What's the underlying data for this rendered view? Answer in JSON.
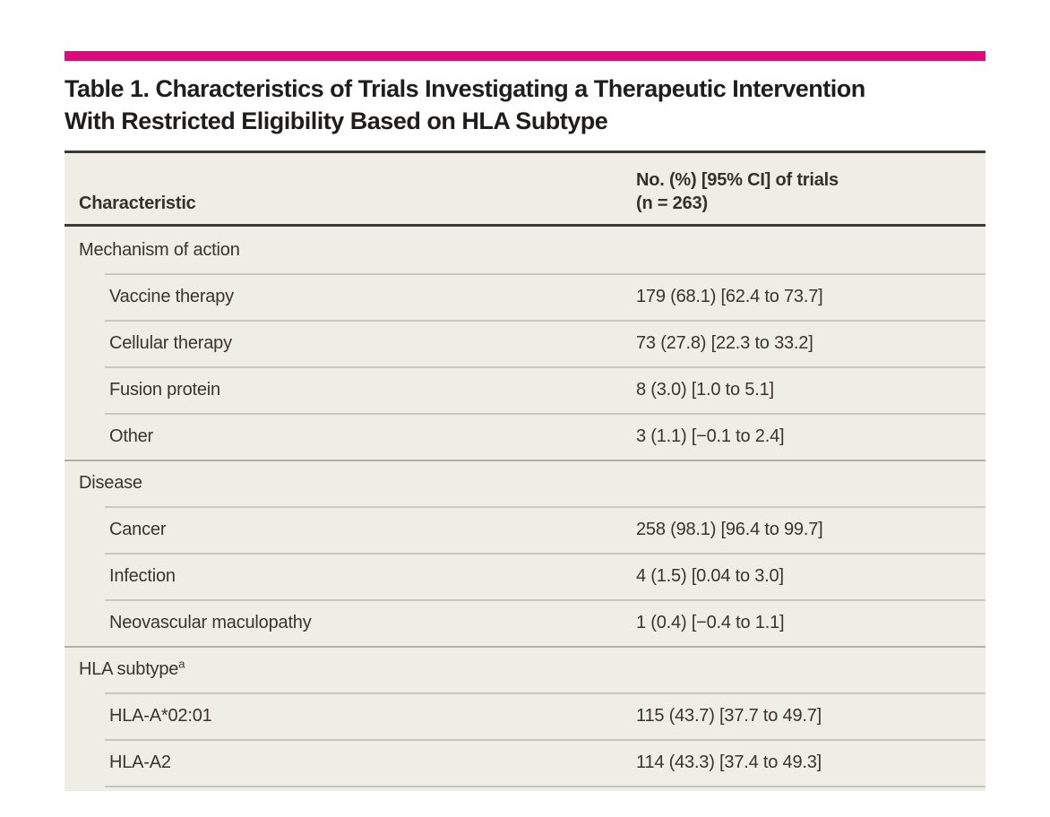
{
  "colors": {
    "accent": "#e2077c",
    "table_background": "#efeee6",
    "rule_dark": "#3b3a37"
  },
  "table": {
    "title": "Table 1. Characteristics of Trials Investigating a Therapeutic Intervention\nWith Restricted Eligibility Based on HLA Subtype",
    "columns": {
      "characteristic": "Characteristic",
      "values": "No. (%) [95% CI] of trials\n(n = 263)"
    },
    "rows": [
      {
        "label": "Mechanism of action",
        "value": "",
        "level": "section"
      },
      {
        "label": "Vaccine therapy",
        "value": "179 (68.1) [62.4 to 73.7]",
        "level": "sub"
      },
      {
        "label": "Cellular therapy",
        "value": "73 (27.8) [22.3 to 33.2]",
        "level": "sub"
      },
      {
        "label": "Fusion protein",
        "value": "8 (3.0) [1.0 to 5.1]",
        "level": "sub"
      },
      {
        "label": "Other",
        "value": "3 (1.1) [−0.1 to 2.4]",
        "level": "sub"
      },
      {
        "label": "Disease",
        "value": "",
        "level": "section"
      },
      {
        "label": "Cancer",
        "value": "258 (98.1) [96.4 to 99.7]",
        "level": "sub"
      },
      {
        "label": "Infection",
        "value": "4 (1.5) [0.04 to 3.0]",
        "level": "sub"
      },
      {
        "label": "Neovascular maculopathy",
        "value": "1 (0.4) [−0.4 to 1.1]",
        "level": "sub"
      },
      {
        "label": "HLA subtype",
        "superscript": "a",
        "value": "",
        "level": "section"
      },
      {
        "label": "HLA-A*02:01",
        "value": "115 (43.7) [37.7 to 49.7]",
        "level": "sub"
      },
      {
        "label": "HLA-A2",
        "value": "114 (43.3) [37.4 to 49.3]",
        "level": "sub"
      }
    ]
  }
}
